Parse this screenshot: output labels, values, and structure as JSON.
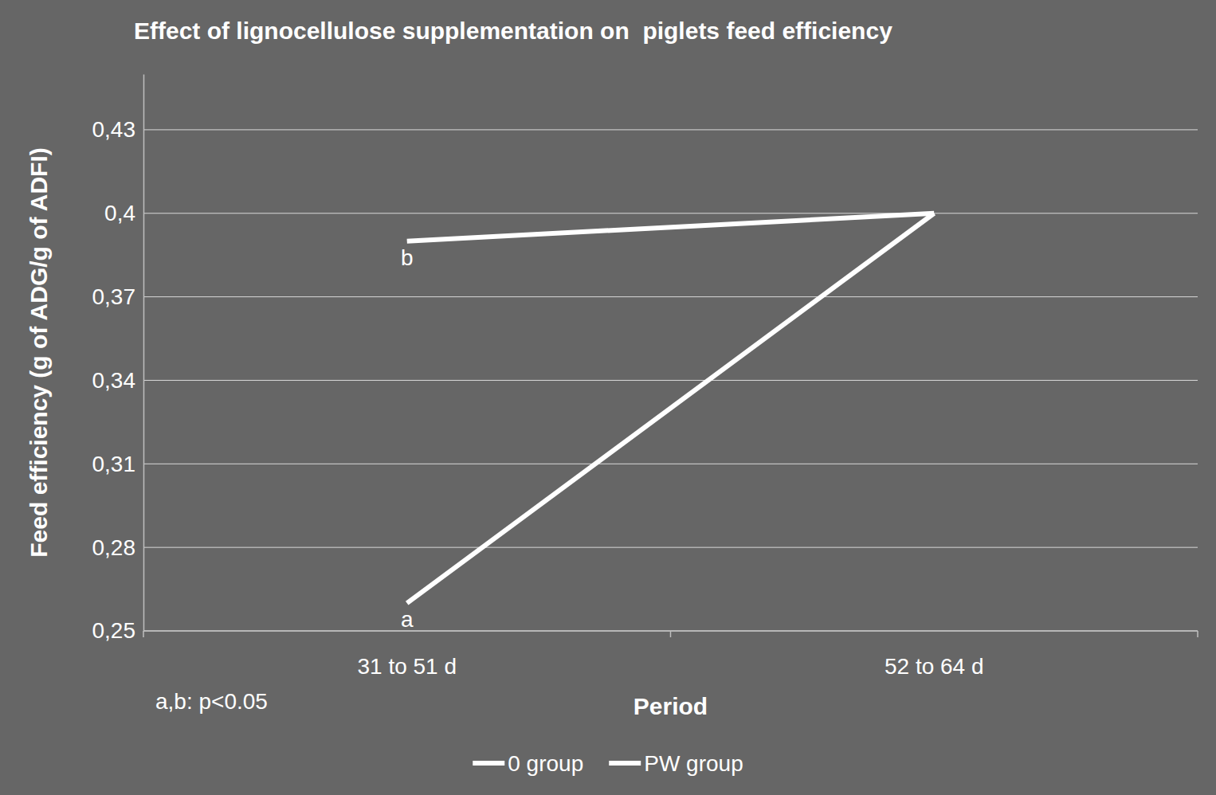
{
  "chart_data": {
    "type": "line",
    "title": "Effect of lignocellulose supplementation on  piglets feed efficiency",
    "x_label": "Period",
    "y_label": "Feed efficiency (g of ADG/g of ADFI)",
    "categories": [
      "31 to 51 d",
      "52 to 64 d"
    ],
    "series": [
      {
        "name": "0 group",
        "color": "#ffffff",
        "values": [
          0.26,
          0.4
        ]
      },
      {
        "name": "PW group",
        "color": "#ffffff",
        "values": [
          0.39,
          0.4
        ]
      }
    ],
    "ylim": [
      0.25,
      0.45
    ],
    "yticks": [
      {
        "value": 0.25,
        "label": "0,25"
      },
      {
        "value": 0.28,
        "label": "0,28"
      },
      {
        "value": 0.31,
        "label": "0,31"
      },
      {
        "value": 0.34,
        "label": "0,34"
      },
      {
        "value": 0.37,
        "label": "0,37"
      },
      {
        "value": 0.4,
        "label": "0,4"
      },
      {
        "value": 0.43,
        "label": "0,43"
      }
    ],
    "grid": true,
    "legend": "bottom",
    "annotations": [
      {
        "text": "b",
        "series": "PW group",
        "x": "31 to 51 d",
        "y": 0.39
      },
      {
        "text": "a",
        "series": "0 group",
        "x": "31 to 51 d",
        "y": 0.26
      }
    ],
    "footnote": "a,b: p<0.05"
  }
}
